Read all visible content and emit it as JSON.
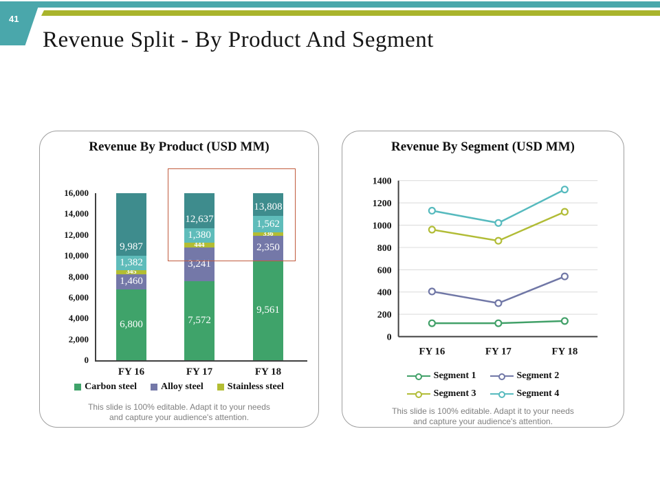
{
  "page": {
    "number": "41",
    "title": "Revenue Split - By Product And Segment"
  },
  "theme": {
    "header_teal": "#4aa7ab",
    "header_olive": "#a9b42c",
    "panel_border": "#9e9e9e",
    "axis_color": "#3f3f3f",
    "grid_color": "#d9d9d9",
    "annotation_color": "#c05a3c",
    "footnote_color": "#7f7f7f"
  },
  "footnote": {
    "line1": "This slide is 100% editable. Adapt it to your needs",
    "line2": "and capture your audience's attention."
  },
  "chart_data": [
    {
      "type": "bar",
      "subtype": "stacked",
      "title": "Revenue By Product (USD MM)",
      "categories": [
        "FY 16",
        "FY 17",
        "FY 18"
      ],
      "series": [
        {
          "name": "Carbon steel",
          "color": "#3fa36a",
          "values": [
            6800,
            7572,
            9561
          ],
          "in_legend": true,
          "small_label": false
        },
        {
          "name": "Alloy steel",
          "color": "#7478a8",
          "values": [
            1460,
            3241,
            2350
          ],
          "in_legend": true,
          "small_label": false
        },
        {
          "name": "Stainless steel",
          "color": "#b3bd33",
          "values": [
            345,
            444,
            336
          ],
          "in_legend": true,
          "small_label": true
        },
        {
          "name": "unlabeled-teal",
          "color": "#5fbcba",
          "values": [
            1382,
            1380,
            1562
          ],
          "in_legend": false,
          "small_label": false
        }
      ],
      "totals": {
        "labels": [
          "9,987",
          "12,637",
          "13,808"
        ],
        "filler_color": "#3e8c8d"
      },
      "ylim": [
        0,
        16000
      ],
      "ytick_step": 2000,
      "tick_format": "comma",
      "grid": false,
      "legend_position": "bottom",
      "annotation": {
        "color": "#c05a3c",
        "spans": [
          "FY 17",
          "FY 18"
        ]
      }
    },
    {
      "type": "line",
      "title": "Revenue By Segment (USD MM)",
      "categories": [
        "FY 16",
        "FY 17",
        "FY 18"
      ],
      "series": [
        {
          "name": "Segment 1",
          "color": "#41a068",
          "values": [
            120,
            120,
            140
          ]
        },
        {
          "name": "Segment 2",
          "color": "#7077a6",
          "values": [
            405,
            300,
            540
          ]
        },
        {
          "name": "Segment 3",
          "color": "#b1bc36",
          "values": [
            960,
            860,
            1120
          ]
        },
        {
          "name": "Segment 4",
          "color": "#56babe",
          "values": [
            1130,
            1020,
            1320
          ]
        }
      ],
      "ylim": [
        0,
        1400
      ],
      "ytick_step": 200,
      "tick_format": "plain",
      "grid": true,
      "legend_position": "bottom"
    }
  ]
}
